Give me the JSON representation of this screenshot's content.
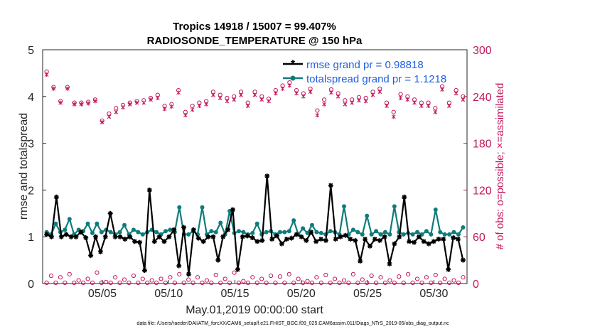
{
  "chart_data": {
    "type": "line",
    "title_line1": "Tropics 14918 / 15007 = 99.407%",
    "title_line2": "RADIOSONDE_TEMPERATURE @ 150 hPa",
    "xlabel": "May.01,2019 00:00:00 start",
    "ylabel": "rmse and totalspread",
    "ylabel_right": "# of obs: o=possible; ×=assimilated",
    "footer": "data file: /Users/raeder/DAI/ATM_forcXX/CAM6_setup/f.e21.FHIST_BGC.f09_025.CAM6assim.011/Diags_NTrS_2019-05/obs_diag_output.nc",
    "xlim": [
      0.5,
      32.5
    ],
    "ylim": [
      0,
      5
    ],
    "ylim_right": [
      0,
      300
    ],
    "x_ticks": [
      5,
      10,
      15,
      20,
      25,
      30
    ],
    "x_tick_labels": [
      "05/05",
      "05/10",
      "05/15",
      "05/20",
      "05/25",
      "05/30"
    ],
    "y_ticks": [
      "0",
      "1",
      "2",
      "3",
      "4",
      "5"
    ],
    "y_ticks_right": [
      "0",
      "60",
      "120",
      "180",
      "240",
      "300"
    ],
    "colors": {
      "rmse": "#000000",
      "spread": "#0e7c7b",
      "obs": "#c2185b",
      "legend_text": "#1f5fe0"
    },
    "legend": [
      "rmse grand pr = 0.98818",
      "totalspread grand pr = 1.1218"
    ],
    "series": [
      {
        "name": "rmse",
        "values": [
          1.05,
          1.0,
          1.85,
          1.0,
          1.05,
          1.0,
          1.0,
          1.1,
          0.98,
          0.6,
          1.0,
          0.68,
          1.0,
          1.5,
          1.0,
          1.0,
          0.95,
          1.0,
          0.9,
          0.88,
          0.28,
          2.0,
          0.9,
          1.0,
          0.9,
          1.0,
          1.15,
          0.38,
          1.2,
          0.2,
          1.15,
          0.97,
          0.9,
          1.0,
          1.0,
          0.5,
          1.0,
          1.15,
          1.58,
          0.3,
          1.0,
          1.02,
          0.98,
          0.9,
          0.92,
          2.3,
          0.95,
          1.02,
          0.85,
          0.95,
          0.97,
          1.05,
          1.0,
          0.92,
          1.1,
          0.9,
          0.95,
          0.92,
          2.1,
          0.95,
          1.0,
          1.03,
          0.95,
          0.92,
          0.48,
          0.95,
          0.8,
          0.95,
          0.92,
          1.0,
          0.42,
          0.85,
          1.0,
          1.85,
          0.9,
          0.88,
          1.0,
          0.9,
          0.85,
          0.9,
          0.95,
          0.95,
          0.3,
          0.98,
          0.95,
          0.5
        ]
      },
      {
        "name": "totalspread",
        "values": [
          1.1,
          1.05,
          1.28,
          1.1,
          1.15,
          1.38,
          1.05,
          1.15,
          1.12,
          1.28,
          1.08,
          1.28,
          1.1,
          1.15,
          1.1,
          1.05,
          1.1,
          1.25,
          1.05,
          1.15,
          1.1,
          1.05,
          1.1,
          1.15,
          1.1,
          1.05,
          1.12,
          1.15,
          1.1,
          1.63,
          1.05,
          1.05,
          1.12,
          1.05,
          1.63,
          1.05,
          1.12,
          1.1,
          1.3,
          1.05,
          1.55,
          1.08,
          1.12,
          1.1,
          1.05,
          1.08,
          1.28,
          1.05,
          1.1,
          1.12,
          1.05,
          1.1,
          1.1,
          1.12,
          1.35,
          1.05,
          1.18,
          1.08,
          1.25,
          1.1,
          1.08,
          1.05,
          1.12,
          1.1,
          1.05,
          1.65,
          1.05,
          1.15,
          1.1,
          1.05,
          1.45,
          1.05,
          1.12,
          1.05,
          1.1,
          1.05,
          1.65,
          1.1,
          1.05,
          1.08,
          1.05,
          1.1,
          1.05,
          1.12,
          1.05,
          1.58,
          1.1,
          1.05,
          1.05,
          1.1,
          1.05,
          1.2
        ]
      },
      {
        "name": "obs_possible",
        "values": [
          272,
          252,
          234,
          252,
          232,
          232,
          233,
          236,
          209,
          218,
          225,
          229,
          232,
          234,
          235,
          238,
          242,
          228,
          230,
          248,
          220,
          228,
          232,
          234,
          246,
          242,
          238,
          240,
          246,
          232,
          246,
          240,
          237,
          248,
          254,
          258,
          248,
          244,
          250,
          222,
          236,
          249,
          244,
          235,
          236,
          239,
          238,
          246,
          250,
          232,
          220,
          243,
          240,
          236,
          232,
          232,
          225,
          253,
          232,
          248,
          240
        ]
      },
      {
        "name": "obs_assimilated",
        "values": [
          268,
          250,
          232,
          250,
          230,
          230,
          231,
          234,
          207,
          214,
          220,
          226,
          230,
          232,
          232,
          236,
          238,
          224,
          227,
          245,
          216,
          223,
          228,
          230,
          242,
          238,
          234,
          236,
          242,
          228,
          242,
          236,
          234,
          244,
          250,
          254,
          244,
          240,
          246,
          216,
          230,
          245,
          240,
          230,
          232,
          235,
          234,
          242,
          246,
          228,
          214,
          238,
          236,
          232,
          228,
          228,
          220,
          249,
          228,
          244,
          236
        ]
      },
      {
        "name": "obs_low",
        "values": [
          1,
          10,
          1,
          8,
          1,
          12,
          1,
          4,
          1,
          6,
          1,
          14,
          1,
          2,
          1,
          8,
          1,
          5,
          1,
          10,
          1,
          6,
          1,
          4,
          1,
          6,
          1,
          8,
          1,
          12,
          1,
          5,
          1,
          8,
          1,
          4,
          1,
          11,
          1,
          6,
          1,
          14,
          1,
          3,
          1,
          8,
          1,
          6,
          1,
          10,
          1,
          9,
          1,
          12,
          1,
          6,
          1,
          3,
          1,
          8,
          1,
          11,
          1,
          6,
          1,
          4,
          1,
          12,
          1,
          5,
          1,
          10,
          1,
          8,
          1,
          4,
          1,
          9,
          1,
          12,
          1,
          6,
          1,
          8,
          1,
          11,
          1,
          6,
          1,
          4,
          1,
          8
        ]
      }
    ]
  }
}
